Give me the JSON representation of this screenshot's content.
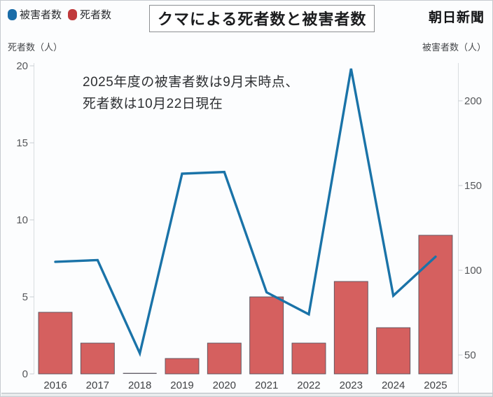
{
  "card": {
    "title": "クマによる死者数と被害者数",
    "brand": "朝日新聞",
    "annotation_line1": "2025年度の被害者数は9月末時点、",
    "annotation_line2": "死者数は10月22日現在"
  },
  "legend": {
    "items": [
      {
        "label": "被害者数",
        "marker": "rounded-dot",
        "color": "#1a6ca8"
      },
      {
        "label": "死者数",
        "marker": "rounded-dot",
        "color": "#c03a3c"
      }
    ]
  },
  "axes": {
    "left_label": "死者数（人）",
    "right_label": "被害者数（人）",
    "left_ticks": [
      0,
      5,
      10,
      15,
      20
    ],
    "right_ticks": [
      50,
      100,
      150,
      200
    ]
  },
  "chart_data": {
    "type": "bar+line (dual axis)",
    "title": "クマによる死者数と被害者数",
    "categories": [
      "2016",
      "2017",
      "2018",
      "2019",
      "2020",
      "2021",
      "2022",
      "2023",
      "2024",
      "2025"
    ],
    "series": [
      {
        "name": "死者数",
        "type": "bar",
        "axis": "left",
        "color": "#d5605f",
        "values": [
          4,
          2,
          0,
          1,
          2,
          5,
          2,
          6,
          3,
          9
        ]
      },
      {
        "name": "被害者数",
        "type": "line",
        "axis": "right",
        "color": "#1a73a8",
        "values": [
          105,
          106,
          51,
          157,
          158,
          87,
          74,
          219,
          85,
          108
        ]
      }
    ],
    "left_axis": {
      "label": "死者数（人）",
      "range": [
        0,
        20
      ]
    },
    "right_axis": {
      "label": "被害者数（人）",
      "ticks_shown": [
        50,
        100,
        150,
        200
      ],
      "max_shown": 219
    },
    "grid": "off",
    "legend_position": "top-left",
    "annotation": "2025年度の被害者数は9月末時点、死者数は10月22日現在"
  },
  "colors": {
    "bar_fill": "#d5605f",
    "bar_stroke": "#57535e",
    "line": "#1a73a8",
    "legend_blue": "#1a6ca8",
    "legend_red": "#c03a3c",
    "axis_line": "#d9dde0",
    "tick_text": "#55575a",
    "year_text": "#3f4144"
  }
}
